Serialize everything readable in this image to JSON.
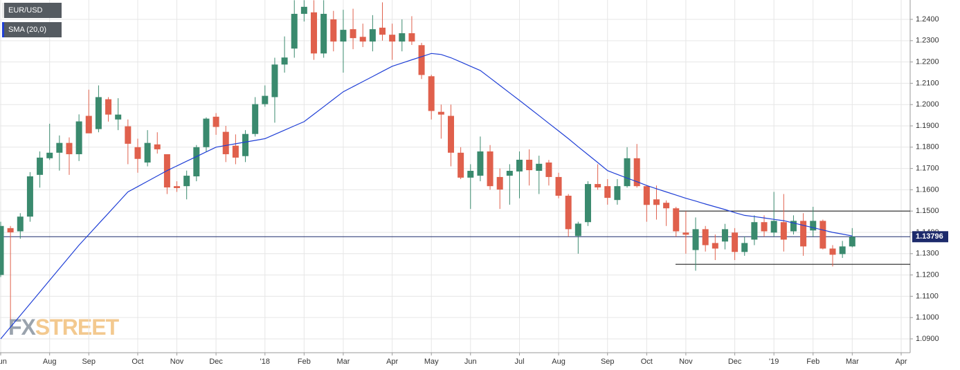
{
  "chart_data": {
    "type": "candlestick",
    "categories": [
      "Jun",
      null,
      null,
      null,
      null,
      "Aug",
      null,
      null,
      null,
      "Sep",
      null,
      null,
      null,
      null,
      "Oct",
      null,
      null,
      null,
      "Nov",
      null,
      null,
      null,
      "Dec",
      null,
      null,
      null,
      null,
      "'18",
      null,
      null,
      null,
      "Feb",
      null,
      null,
      null,
      "Mar",
      null,
      null,
      null,
      null,
      "Apr",
      null,
      null,
      null,
      "May",
      null,
      null,
      null,
      "Jun",
      null,
      null,
      null,
      null,
      "Jul",
      null,
      null,
      null,
      "Aug",
      null,
      null,
      null,
      null,
      "Sep",
      null,
      null,
      null,
      "Oct",
      null,
      null,
      null,
      "Nov",
      null,
      null,
      null,
      null,
      "Dec",
      null,
      null,
      null,
      "'19",
      null,
      null,
      null,
      "Feb",
      null,
      null,
      null,
      "Mar",
      null,
      null,
      null,
      null,
      "Apr"
    ],
    "series": [
      {
        "name": "EUR/USD",
        "type": "candlestick",
        "up_color": "#3a8a6e",
        "down_color": "#e0604c",
        "open": [
          1.12,
          1.142,
          1.1405,
          1.1474,
          1.167,
          1.1748,
          1.1774,
          1.182,
          1.1767,
          1.1947,
          1.1885,
          1.2025,
          1.193,
          1.1898,
          1.18,
          1.1728,
          1.1813,
          1.1767,
          1.1617,
          1.1617,
          1.1663,
          1.18,
          1.1943,
          1.1872,
          1.1807,
          1.1758,
          1.1862,
          1.2002,
          1.2035,
          1.2188,
          1.2263,
          1.2426,
          1.2433,
          1.224,
          1.24,
          1.2296,
          1.2354,
          1.2318,
          1.2296,
          1.2361,
          1.2328,
          1.2296,
          1.2335,
          1.2279,
          1.2133,
          1.1966,
          1.1947,
          1.1774,
          1.1657,
          1.1666,
          1.178,
          1.166,
          1.1666,
          1.1686,
          1.1741,
          1.1689,
          1.1728,
          1.166,
          1.1572,
          1.1383,
          1.1448,
          1.1627,
          1.1617,
          1.1552,
          1.1617,
          1.1748,
          1.1617,
          1.1555,
          1.1539,
          1.1513,
          1.1399,
          1.1317,
          1.1415,
          1.135,
          1.1357,
          1.1399,
          1.1308,
          1.1366,
          1.1448,
          1.1399,
          1.1448,
          1.1405,
          1.1454,
          1.1409,
          1.1454,
          1.1324,
          1.1298,
          1.1334,
          null,
          null,
          null,
          null,
          null
        ],
        "high": [
          1.145,
          1.143,
          1.149,
          1.1683,
          1.178,
          1.191,
          1.1855,
          1.1846,
          1.1954,
          1.207,
          1.209,
          1.2035,
          1.203,
          1.193,
          1.184,
          1.188,
          1.187,
          1.1767,
          1.164,
          1.169,
          1.181,
          1.194,
          1.196,
          1.19,
          1.186,
          1.188,
          1.2035,
          1.209,
          1.222,
          1.232,
          1.249,
          1.249,
          1.249,
          1.249,
          1.244,
          1.2445,
          1.245,
          1.238,
          1.242,
          1.248,
          1.238,
          1.24,
          1.2415,
          1.229,
          1.214,
          1.2,
          1.2,
          1.18,
          1.172,
          1.185,
          1.181,
          1.17,
          1.172,
          1.178,
          1.179,
          1.176,
          1.174,
          1.168,
          1.158,
          1.145,
          1.164,
          1.172,
          1.165,
          1.165,
          1.18,
          1.1815,
          1.162,
          1.162,
          1.155,
          1.152,
          1.15,
          1.147,
          1.143,
          1.139,
          1.144,
          1.142,
          1.138,
          1.148,
          1.148,
          1.159,
          1.158,
          1.148,
          1.149,
          1.152,
          1.146,
          1.134,
          1.136,
          1.142,
          null,
          null,
          null,
          null,
          null
        ],
        "low": [
          1.119,
          1.099,
          1.137,
          1.145,
          1.161,
          1.174,
          1.169,
          1.167,
          1.1735,
          1.188,
          1.187,
          1.192,
          1.188,
          1.172,
          1.168,
          1.171,
          1.177,
          1.158,
          1.159,
          1.1555,
          1.164,
          1.178,
          1.1858,
          1.173,
          1.172,
          1.173,
          1.185,
          1.199,
          1.1915,
          1.215,
          1.222,
          1.239,
          1.221,
          1.222,
          1.225,
          1.215,
          1.226,
          1.227,
          1.225,
          1.23,
          1.221,
          1.225,
          1.228,
          1.212,
          1.193,
          1.184,
          1.171,
          1.165,
          1.151,
          1.164,
          1.16,
          1.151,
          1.153,
          1.156,
          1.162,
          1.158,
          1.162,
          1.156,
          1.138,
          1.13,
          1.143,
          1.16,
          1.153,
          1.153,
          1.161,
          1.161,
          1.145,
          1.146,
          1.143,
          1.138,
          1.13,
          1.122,
          1.131,
          1.127,
          1.132,
          1.127,
          1.129,
          1.134,
          1.138,
          1.138,
          1.131,
          1.139,
          1.129,
          1.138,
          1.132,
          1.124,
          1.128,
          1.133,
          null,
          null,
          null,
          null,
          null
        ],
        "close": [
          1.143,
          1.14,
          1.1474,
          1.1663,
          1.1751,
          1.1774,
          1.182,
          1.1767,
          1.1921,
          1.1865,
          1.2035,
          1.1953,
          1.1953,
          1.1816,
          1.1745,
          1.182,
          1.179,
          1.1611,
          1.1608,
          1.1666,
          1.18,
          1.1934,
          1.1895,
          1.1767,
          1.1751,
          1.1862,
          1.2002,
          1.2041,
          1.2188,
          1.2221,
          1.2426,
          1.2459,
          1.224,
          1.2426,
          1.2296,
          1.2351,
          1.2312,
          1.2296,
          1.2354,
          1.2328,
          1.2296,
          1.2335,
          1.2296,
          1.2139,
          1.197,
          1.1953,
          1.1774,
          1.1657,
          1.1689,
          1.178,
          1.1617,
          1.1601,
          1.1689,
          1.1741,
          1.1692,
          1.1722,
          1.166,
          1.1572,
          1.1415,
          1.1441,
          1.1627,
          1.1611,
          1.1562,
          1.1617,
          1.1748,
          1.1617,
          1.1529,
          1.1529,
          1.1513,
          1.1405,
          1.1389,
          1.1415,
          1.134,
          1.1324,
          1.1415,
          1.1308,
          1.135,
          1.1448,
          1.1405,
          1.1454,
          1.1366,
          1.1454,
          1.1334,
          1.1454,
          1.1324,
          1.1295,
          1.1334,
          1.13796,
          null,
          null,
          null,
          null,
          null
        ]
      },
      {
        "name": "SMA (20,0)",
        "type": "line",
        "color": "#1f3fd6",
        "values": [
          1.09,
          1.0955,
          1.101,
          1.1065,
          1.112,
          1.1175,
          1.123,
          1.1285,
          1.134,
          1.139,
          1.144,
          1.149,
          1.154,
          1.159,
          1.1615,
          1.164,
          1.1665,
          1.169,
          1.1712,
          1.1734,
          1.1756,
          1.1778,
          1.18,
          1.1808,
          1.1816,
          1.1824,
          1.1832,
          1.184,
          1.186,
          1.188,
          1.19,
          1.192,
          1.1955,
          1.199,
          1.2025,
          1.206,
          1.2084,
          1.2108,
          1.2132,
          1.2156,
          1.218,
          1.2195,
          1.221,
          1.2225,
          1.224,
          1.2235,
          1.222,
          1.22,
          1.218,
          1.216,
          1.2125,
          1.209,
          1.2055,
          1.202,
          1.1984,
          1.1948,
          1.1912,
          1.1876,
          1.184,
          1.1802,
          1.1765,
          1.1728,
          1.169,
          1.1672,
          1.1655,
          1.1638,
          1.162,
          1.1605,
          1.159,
          1.1575,
          1.156,
          1.1547,
          1.1533,
          1.152,
          1.1507,
          1.1493,
          1.148,
          1.1474,
          1.1468,
          1.1461,
          1.1455,
          1.1444,
          1.1433,
          1.1422,
          1.1411,
          1.14,
          1.1392,
          1.1383,
          null,
          null,
          null,
          null,
          null
        ]
      }
    ],
    "ylim": [
      1.0835,
      1.2491
    ],
    "yticks": [
      {
        "value": 1.09,
        "label": "1.0900"
      },
      {
        "value": 1.1,
        "label": "1.1000"
      },
      {
        "value": 1.11,
        "label": "1.1100"
      },
      {
        "value": 1.12,
        "label": "1.1200"
      },
      {
        "value": 1.13,
        "label": "1.1300"
      },
      {
        "value": 1.14,
        "label": "1.1400"
      },
      {
        "value": 1.15,
        "label": "1.1500"
      },
      {
        "value": 1.16,
        "label": "1.1600"
      },
      {
        "value": 1.17,
        "label": "1.1700"
      },
      {
        "value": 1.18,
        "label": "1.1800"
      },
      {
        "value": 1.19,
        "label": "1.1900"
      },
      {
        "value": 1.2,
        "label": "1.2000"
      },
      {
        "value": 1.21,
        "label": "1.2100"
      },
      {
        "value": 1.22,
        "label": "1.2200"
      },
      {
        "value": 1.23,
        "label": "1.2300"
      },
      {
        "value": 1.24,
        "label": "1.2400"
      }
    ],
    "grid": true,
    "last_price": 1.13796,
    "last_price_color": "#1c2a6b",
    "levels": [
      1.15,
      1.125
    ],
    "watermark": [
      "FX",
      "STREET"
    ]
  }
}
